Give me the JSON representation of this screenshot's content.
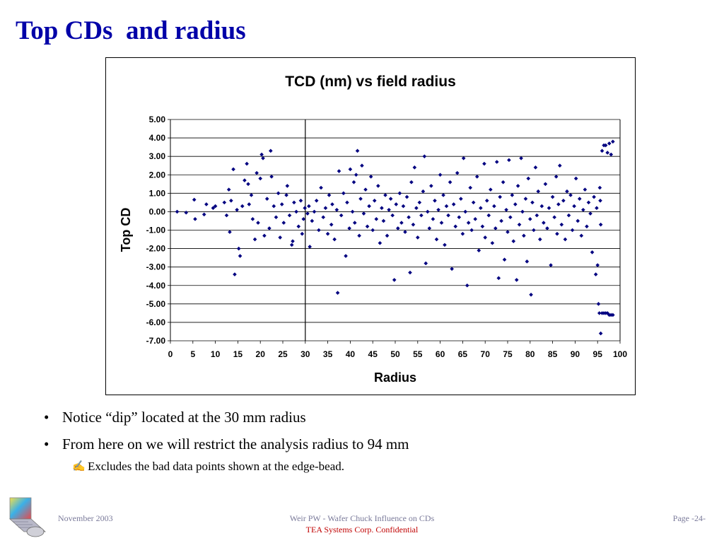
{
  "slide": {
    "title": "Top CDs  and radius"
  },
  "chart_data": {
    "type": "scatter",
    "title": "TCD (nm) vs field radius",
    "xlabel": "Radius",
    "ylabel": "Top CD",
    "xlim": [
      0,
      100
    ],
    "ylim": [
      -7,
      5
    ],
    "x_ticks": [
      "0",
      "5",
      "10",
      "15",
      "20",
      "25",
      "30",
      "35",
      "40",
      "45",
      "50",
      "55",
      "60",
      "65",
      "70",
      "75",
      "80",
      "85",
      "90",
      "95",
      "100"
    ],
    "y_ticks": [
      "5.00",
      "4.00",
      "3.00",
      "2.00",
      "1.00",
      "0.00",
      "-1.00",
      "-2.00",
      "-3.00",
      "-4.00",
      "-5.00",
      "-6.00",
      "-7.00"
    ],
    "grid": "horizontal",
    "reference_line_x": 30,
    "marker_color": "#000080",
    "points": [
      [
        1.5,
        0.0
      ],
      [
        3.5,
        -0.05
      ],
      [
        5.3,
        0.65
      ],
      [
        5.5,
        -0.4
      ],
      [
        7.5,
        -0.15
      ],
      [
        8.0,
        0.4
      ],
      [
        9.5,
        0.2
      ],
      [
        10,
        0.3
      ],
      [
        12,
        0.5
      ],
      [
        12.5,
        -0.2
      ],
      [
        13,
        1.2
      ],
      [
        13.2,
        -1.1
      ],
      [
        13.5,
        0.6
      ],
      [
        14,
        2.3
      ],
      [
        14.3,
        -3.4
      ],
      [
        14.8,
        0.1
      ],
      [
        15.2,
        -2.0
      ],
      [
        15.5,
        -2.4
      ],
      [
        16,
        0.3
      ],
      [
        16.5,
        1.7
      ],
      [
        17,
        2.6
      ],
      [
        17.3,
        1.5
      ],
      [
        17.5,
        0.4
      ],
      [
        18,
        0.9
      ],
      [
        18.3,
        -0.4
      ],
      [
        18.8,
        -1.5
      ],
      [
        19.2,
        2.1
      ],
      [
        19.5,
        -0.6
      ],
      [
        20,
        1.8
      ],
      [
        20.3,
        3.1
      ],
      [
        20.6,
        2.9
      ],
      [
        20.9,
        -1.3
      ],
      [
        21.5,
        0.7
      ],
      [
        22,
        -0.9
      ],
      [
        22.3,
        3.3
      ],
      [
        22.5,
        1.9
      ],
      [
        23,
        0.3
      ],
      [
        23.5,
        -0.3
      ],
      [
        24,
        1.0
      ],
      [
        24.4,
        -1.4
      ],
      [
        24.8,
        0.4
      ],
      [
        25.2,
        -0.6
      ],
      [
        25.8,
        0.9
      ],
      [
        26,
        1.4
      ],
      [
        26.5,
        -0.2
      ],
      [
        27,
        -1.8
      ],
      [
        27.2,
        -1.6
      ],
      [
        27.5,
        0.5
      ],
      [
        28,
        0.0
      ],
      [
        28.5,
        -0.8
      ],
      [
        29,
        0.6
      ],
      [
        29.3,
        -1.2
      ],
      [
        29.6,
        -0.4
      ],
      [
        29.9,
        0.2
      ],
      [
        30.5,
        -0.1
      ],
      [
        30.8,
        0.3
      ],
      [
        31,
        -1.9
      ],
      [
        31.5,
        -0.5
      ],
      [
        32,
        0.0
      ],
      [
        32.5,
        0.6
      ],
      [
        33,
        -1.0
      ],
      [
        33.5,
        1.3
      ],
      [
        34,
        -0.3
      ],
      [
        34.5,
        0.2
      ],
      [
        35,
        -1.2
      ],
      [
        35.3,
        0.9
      ],
      [
        35.8,
        -0.7
      ],
      [
        36,
        0.4
      ],
      [
        36.5,
        -1.5
      ],
      [
        37,
        0.1
      ],
      [
        37.2,
        -4.4
      ],
      [
        37.5,
        2.2
      ],
      [
        38,
        -0.2
      ],
      [
        38.5,
        1.0
      ],
      [
        39,
        -2.4
      ],
      [
        39.3,
        0.5
      ],
      [
        39.8,
        -0.9
      ],
      [
        40,
        2.3
      ],
      [
        40.5,
        0.0
      ],
      [
        40.8,
        1.6
      ],
      [
        41,
        -0.6
      ],
      [
        41.3,
        2.0
      ],
      [
        41.6,
        3.3
      ],
      [
        42,
        -1.3
      ],
      [
        42.3,
        0.7
      ],
      [
        42.6,
        2.5
      ],
      [
        43,
        -0.1
      ],
      [
        43.4,
        1.2
      ],
      [
        43.8,
        -0.8
      ],
      [
        44.2,
        0.3
      ],
      [
        44.6,
        1.9
      ],
      [
        45,
        -1.0
      ],
      [
        45.4,
        0.6
      ],
      [
        45.8,
        -0.4
      ],
      [
        46.2,
        1.4
      ],
      [
        46.6,
        -1.7
      ],
      [
        47,
        0.2
      ],
      [
        47.4,
        -0.5
      ],
      [
        47.8,
        0.9
      ],
      [
        48.2,
        -1.3
      ],
      [
        48.6,
        0.1
      ],
      [
        49,
        0.7
      ],
      [
        49.4,
        -0.2
      ],
      [
        49.8,
        -3.7
      ],
      [
        50.2,
        0.4
      ],
      [
        50.6,
        -0.9
      ],
      [
        51,
        1.0
      ],
      [
        51.4,
        -0.6
      ],
      [
        51.8,
        0.3
      ],
      [
        52.2,
        -1.1
      ],
      [
        52.6,
        0.8
      ],
      [
        53,
        -0.3
      ],
      [
        53.3,
        -3.3
      ],
      [
        53.6,
        1.6
      ],
      [
        54,
        -0.7
      ],
      [
        54.3,
        2.4
      ],
      [
        54.7,
        0.2
      ],
      [
        55,
        -1.4
      ],
      [
        55.4,
        0.5
      ],
      [
        55.8,
        -0.2
      ],
      [
        56.2,
        1.1
      ],
      [
        56.5,
        3.0
      ],
      [
        56.8,
        -2.8
      ],
      [
        57.2,
        0.0
      ],
      [
        57.6,
        -0.9
      ],
      [
        58,
        1.4
      ],
      [
        58.4,
        -0.4
      ],
      [
        58.8,
        0.6
      ],
      [
        59.2,
        -1.5
      ],
      [
        59.6,
        0.1
      ],
      [
        60,
        2.0
      ],
      [
        60.3,
        -0.6
      ],
      [
        60.7,
        0.9
      ],
      [
        61,
        -1.8
      ],
      [
        61.4,
        0.3
      ],
      [
        61.8,
        -0.2
      ],
      [
        62.2,
        1.6
      ],
      [
        62.6,
        -3.1
      ],
      [
        63,
        0.4
      ],
      [
        63.4,
        -0.8
      ],
      [
        63.8,
        2.1
      ],
      [
        64.2,
        -0.3
      ],
      [
        64.6,
        0.7
      ],
      [
        65,
        -1.2
      ],
      [
        65.2,
        2.9
      ],
      [
        65.6,
        0.0
      ],
      [
        66,
        -4.0
      ],
      [
        66.3,
        -0.6
      ],
      [
        66.7,
        1.3
      ],
      [
        67,
        -1.0
      ],
      [
        67.4,
        0.5
      ],
      [
        67.8,
        -0.4
      ],
      [
        68.2,
        1.9
      ],
      [
        68.6,
        -2.1
      ],
      [
        69,
        0.2
      ],
      [
        69.4,
        -0.8
      ],
      [
        69.8,
        2.6
      ],
      [
        70,
        -1.4
      ],
      [
        70.4,
        0.6
      ],
      [
        70.8,
        -0.2
      ],
      [
        71.2,
        1.2
      ],
      [
        71.6,
        -1.7
      ],
      [
        72,
        0.3
      ],
      [
        72.3,
        -0.9
      ],
      [
        72.6,
        2.7
      ],
      [
        73,
        -3.6
      ],
      [
        73.3,
        0.8
      ],
      [
        73.6,
        -0.5
      ],
      [
        74,
        1.6
      ],
      [
        74.3,
        -2.6
      ],
      [
        74.7,
        0.1
      ],
      [
        75,
        -1.1
      ],
      [
        75.3,
        2.8
      ],
      [
        75.6,
        -0.3
      ],
      [
        76,
        0.9
      ],
      [
        76.3,
        -1.6
      ],
      [
        76.7,
        0.4
      ],
      [
        77,
        -3.7
      ],
      [
        77.3,
        1.4
      ],
      [
        77.6,
        -0.7
      ],
      [
        78,
        2.9
      ],
      [
        78.3,
        0.0
      ],
      [
        78.6,
        -1.3
      ],
      [
        79,
        0.7
      ],
      [
        79.3,
        -2.7
      ],
      [
        79.6,
        1.8
      ],
      [
        80,
        -0.4
      ],
      [
        80.2,
        -4.5
      ],
      [
        80.5,
        0.5
      ],
      [
        80.8,
        -1.0
      ],
      [
        81.2,
        2.4
      ],
      [
        81.5,
        -0.2
      ],
      [
        81.8,
        1.1
      ],
      [
        82.2,
        -1.5
      ],
      [
        82.6,
        0.3
      ],
      [
        83,
        -0.6
      ],
      [
        83.4,
        1.5
      ],
      [
        83.8,
        -0.9
      ],
      [
        84.2,
        0.2
      ],
      [
        84.6,
        -2.9
      ],
      [
        85,
        0.8
      ],
      [
        85.4,
        -0.3
      ],
      [
        85.8,
        1.9
      ],
      [
        86,
        -1.2
      ],
      [
        86.3,
        0.4
      ],
      [
        86.6,
        2.5
      ],
      [
        87,
        -0.7
      ],
      [
        87.4,
        0.6
      ],
      [
        87.8,
        -1.5
      ],
      [
        88.2,
        1.1
      ],
      [
        88.6,
        -0.2
      ],
      [
        89,
        0.9
      ],
      [
        89.4,
        -1.0
      ],
      [
        89.8,
        0.3
      ],
      [
        90.2,
        1.8
      ],
      [
        90.6,
        -0.5
      ],
      [
        91,
        0.7
      ],
      [
        91.4,
        -1.3
      ],
      [
        91.8,
        0.1
      ],
      [
        92.2,
        1.2
      ],
      [
        92.6,
        -0.8
      ],
      [
        93,
        0.5
      ],
      [
        93.4,
        -0.1
      ],
      [
        93.8,
        -2.2
      ],
      [
        94.2,
        0.8
      ],
      [
        94.6,
        -3.4
      ],
      [
        94.8,
        0.2
      ],
      [
        95,
        -2.9
      ],
      [
        95.2,
        -5.0
      ],
      [
        95.4,
        -5.5
      ],
      [
        95.7,
        -0.7
      ],
      [
        95.7,
        -6.6
      ],
      [
        96,
        -5.5
      ],
      [
        96.4,
        -5.5
      ],
      [
        96.8,
        -5.5
      ],
      [
        97.2,
        -5.5
      ],
      [
        97.6,
        -5.6
      ],
      [
        98,
        -5.6
      ],
      [
        98.4,
        -5.6
      ],
      [
        96,
        3.3
      ],
      [
        96.4,
        3.6
      ],
      [
        96.8,
        3.6
      ],
      [
        97.2,
        3.2
      ],
      [
        97.6,
        3.7
      ],
      [
        98,
        3.1
      ],
      [
        98.4,
        3.8
      ],
      [
        95.5,
        1.3
      ],
      [
        95.6,
        0.6
      ]
    ]
  },
  "bullets": [
    {
      "marker": "•",
      "text": "Notice “dip” located at the 30 mm radius"
    },
    {
      "marker": "•",
      "text": "From here on we will restrict the analysis radius to 94 mm"
    }
  ],
  "subbullet": {
    "marker": "✍",
    "text": "Excludes the bad data points shown at the edge-bead."
  },
  "footer": {
    "date": "November 2003",
    "center_line1": "Weir PW - Wafer Chuck Influence on CDs",
    "center_line2": "TEA Systems Corp. Confidential",
    "page": "Page -24-"
  }
}
